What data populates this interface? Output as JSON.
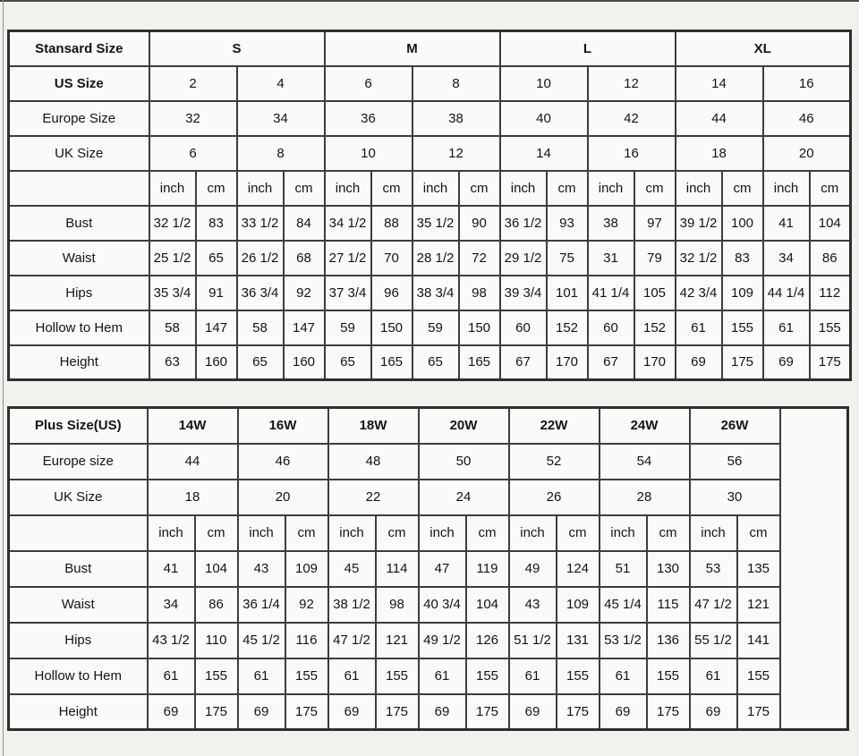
{
  "page": {
    "background": "#f2f1ee",
    "border_color": "#3d3d3d",
    "text_color": "#141414"
  },
  "tables": {
    "standard": {
      "title": "Stansard Size",
      "size_groups": [
        "S",
        "M",
        "L",
        "XL"
      ],
      "conversion_rows": [
        {
          "label": "US Size",
          "bold": true,
          "values": [
            "2",
            "4",
            "6",
            "8",
            "10",
            "12",
            "14",
            "16"
          ]
        },
        {
          "label": "Europe Size",
          "bold": false,
          "values": [
            "32",
            "34",
            "36",
            "38",
            "40",
            "42",
            "44",
            "46"
          ]
        },
        {
          "label": "UK Size",
          "bold": false,
          "values": [
            "6",
            "8",
            "10",
            "12",
            "14",
            "16",
            "18",
            "20"
          ]
        }
      ],
      "unit_headers": [
        "inch",
        "cm"
      ],
      "measurement_rows": [
        {
          "label": "Bust",
          "values": [
            "32 1/2",
            "83",
            "33 1/2",
            "84",
            "34 1/2",
            "88",
            "35 1/2",
            "90",
            "36 1/2",
            "93",
            "38",
            "97",
            "39 1/2",
            "100",
            "41",
            "104"
          ]
        },
        {
          "label": "Waist",
          "values": [
            "25 1/2",
            "65",
            "26 1/2",
            "68",
            "27 1/2",
            "70",
            "28 1/2",
            "72",
            "29 1/2",
            "75",
            "31",
            "79",
            "32 1/2",
            "83",
            "34",
            "86"
          ]
        },
        {
          "label": "Hips",
          "values": [
            "35 3/4",
            "91",
            "36 3/4",
            "92",
            "37 3/4",
            "96",
            "38 3/4",
            "98",
            "39 3/4",
            "101",
            "41 1/4",
            "105",
            "42 3/4",
            "109",
            "44 1/4",
            "112"
          ]
        },
        {
          "label": "Hollow to Hem",
          "values": [
            "58",
            "147",
            "58",
            "147",
            "59",
            "150",
            "59",
            "150",
            "60",
            "152",
            "60",
            "152",
            "61",
            "155",
            "61",
            "155"
          ]
        },
        {
          "label": "Height",
          "values": [
            "63",
            "160",
            "65",
            "160",
            "65",
            "165",
            "65",
            "165",
            "67",
            "170",
            "67",
            "170",
            "69",
            "175",
            "69",
            "175"
          ]
        }
      ],
      "trailing_empty_column": false
    },
    "plus": {
      "title": "Plus Size(US)",
      "size_groups": [
        "14W",
        "16W",
        "18W",
        "20W",
        "22W",
        "24W",
        "26W"
      ],
      "conversion_rows": [
        {
          "label": "Europe size",
          "bold": false,
          "values": [
            "44",
            "46",
            "48",
            "50",
            "52",
            "54",
            "56"
          ]
        },
        {
          "label": "UK Size",
          "bold": false,
          "values": [
            "18",
            "20",
            "22",
            "24",
            "26",
            "28",
            "30"
          ]
        }
      ],
      "unit_headers": [
        "inch",
        "cm"
      ],
      "measurement_rows": [
        {
          "label": "Bust",
          "values": [
            "41",
            "104",
            "43",
            "109",
            "45",
            "114",
            "47",
            "119",
            "49",
            "124",
            "51",
            "130",
            "53",
            "135"
          ]
        },
        {
          "label": "Waist",
          "values": [
            "34",
            "86",
            "36 1/4",
            "92",
            "38 1/2",
            "98",
            "40 3/4",
            "104",
            "43",
            "109",
            "45 1/4",
            "115",
            "47 1/2",
            "121"
          ]
        },
        {
          "label": "Hips",
          "values": [
            "43 1/2",
            "110",
            "45 1/2",
            "116",
            "47 1/2",
            "121",
            "49 1/2",
            "126",
            "51 1/2",
            "131",
            "53 1/2",
            "136",
            "55 1/2",
            "141"
          ]
        },
        {
          "label": "Hollow to Hem",
          "values": [
            "61",
            "155",
            "61",
            "155",
            "61",
            "155",
            "61",
            "155",
            "61",
            "155",
            "61",
            "155",
            "61",
            "155"
          ]
        },
        {
          "label": "Height",
          "values": [
            "69",
            "175",
            "69",
            "175",
            "69",
            "175",
            "69",
            "175",
            "69",
            "175",
            "69",
            "175",
            "69",
            "175"
          ]
        }
      ],
      "trailing_empty_column": true
    }
  }
}
